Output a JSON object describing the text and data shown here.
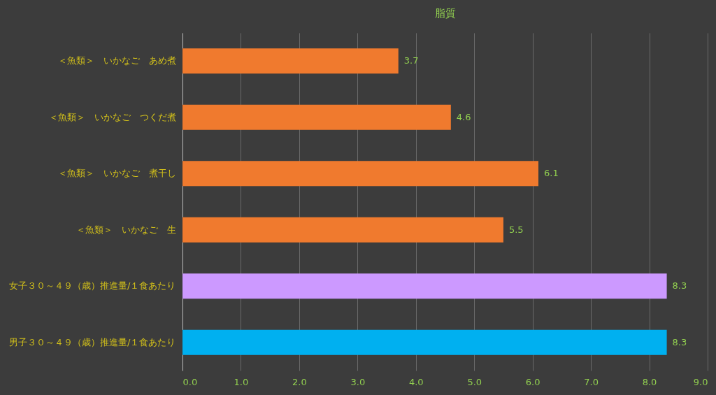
{
  "chart_data": {
    "type": "bar",
    "orientation": "horizontal",
    "title": "脂質",
    "categories": [
      "＜魚類＞　いかなご　あめ煮",
      "＜魚類＞　いかなご　つくだ煮",
      "＜魚類＞　いかなご　煮干し",
      "＜魚類＞　いかなご　生",
      "女子３０～４９（歳）推進量/１食あたり",
      "男子３０～４９（歳）推進量/１食あたり"
    ],
    "values": [
      3.7,
      4.6,
      6.1,
      5.5,
      8.3,
      8.3
    ],
    "colors": [
      "#f07a2e",
      "#f07a2e",
      "#f07a2e",
      "#f07a2e",
      "#cc99ff",
      "#00b0f0"
    ],
    "xlim": [
      0,
      9
    ],
    "xticks": [
      {
        "value": 0,
        "label": "0.0"
      },
      {
        "value": 1,
        "label": "1.0"
      },
      {
        "value": 2,
        "label": "2.0"
      },
      {
        "value": 3,
        "label": "3.0"
      },
      {
        "value": 4,
        "label": "4.0"
      },
      {
        "value": 5,
        "label": "5.0"
      },
      {
        "value": 6,
        "label": "6.0"
      },
      {
        "value": 7,
        "label": "7.0"
      },
      {
        "value": 8,
        "label": "8.0"
      },
      {
        "value": 9,
        "label": "9.0"
      }
    ],
    "grid": "x",
    "data_labels": true
  }
}
